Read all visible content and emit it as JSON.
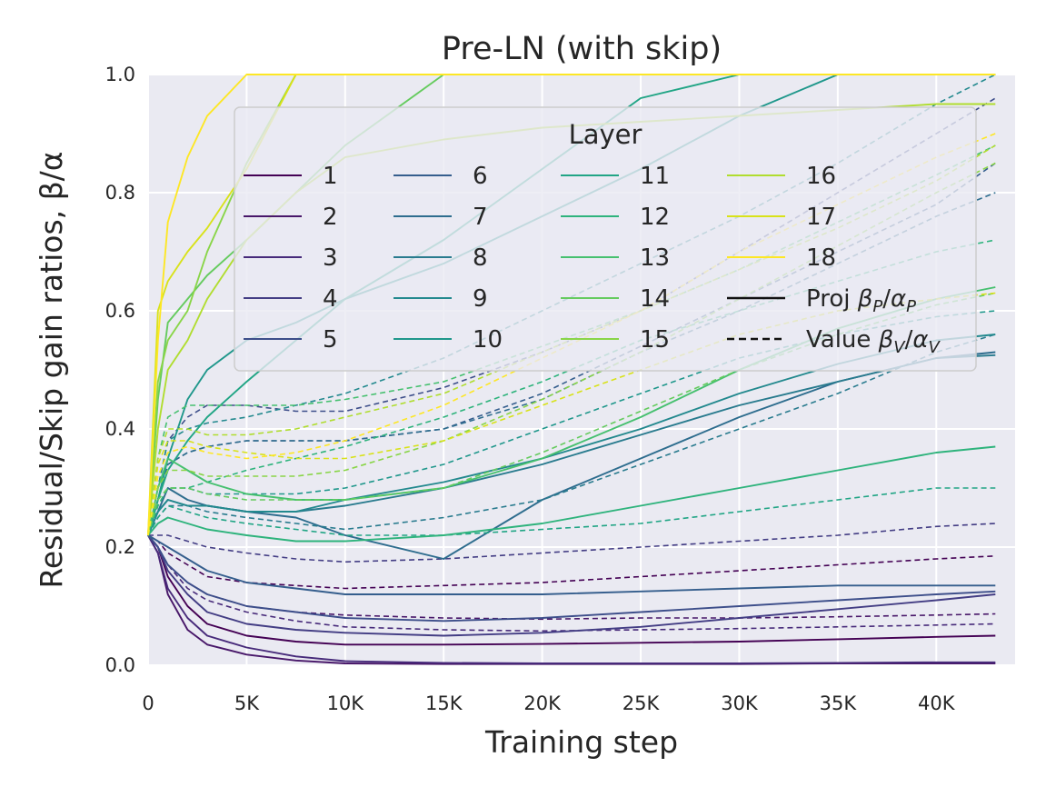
{
  "chart_data": {
    "type": "line",
    "title": "Pre-LN (with skip)",
    "xlabel": "Training step",
    "ylabel": "Residual/Skip gain ratios, β/α",
    "xlim": [
      0,
      44000
    ],
    "ylim": [
      0.0,
      1.0
    ],
    "x_ticks": [
      0,
      5000,
      10000,
      15000,
      20000,
      25000,
      30000,
      35000,
      40000
    ],
    "x_tick_labels": [
      "0",
      "5K",
      "10K",
      "15K",
      "20K",
      "25K",
      "30K",
      "35K",
      "40K"
    ],
    "y_ticks": [
      0.0,
      0.2,
      0.4,
      0.6,
      0.8,
      1.0
    ],
    "y_tick_labels": [
      "0.0",
      "0.2",
      "0.4",
      "0.6",
      "0.8",
      "1.0"
    ],
    "grid": true,
    "legend": {
      "title": "Layer",
      "placement": "upper-center",
      "layers": [
        "1",
        "2",
        "3",
        "4",
        "5",
        "6",
        "7",
        "8",
        "9",
        "10",
        "11",
        "12",
        "13",
        "14",
        "15",
        "16",
        "17",
        "18"
      ],
      "style_entries": [
        {
          "label_prefix": "Proj ",
          "math": "β_P/α_P",
          "base1": "β",
          "sub1": "P",
          "base2": "α",
          "sub2": "P",
          "style": "solid"
        },
        {
          "label_prefix": "Value ",
          "math": "β_V/α_V",
          "base1": "β",
          "sub1": "V",
          "base2": "α",
          "sub2": "V",
          "style": "dashed"
        }
      ]
    },
    "x": [
      0,
      500,
      1000,
      2000,
      3000,
      5000,
      7500,
      10000,
      15000,
      20000,
      25000,
      30000,
      35000,
      40000,
      43000
    ],
    "series": [
      {
        "name": "Layer 1 Proj",
        "layer": 1,
        "style": "solid",
        "color": "#440154",
        "values": [
          0.22,
          0.2,
          0.15,
          0.1,
          0.07,
          0.05,
          0.04,
          0.035,
          0.035,
          0.036,
          0.038,
          0.04,
          0.044,
          0.048,
          0.05
        ]
      },
      {
        "name": "Layer 1 Value",
        "layer": 1,
        "style": "dashed",
        "color": "#440154",
        "values": [
          0.22,
          0.21,
          0.19,
          0.17,
          0.15,
          0.14,
          0.135,
          0.13,
          0.135,
          0.14,
          0.15,
          0.16,
          0.17,
          0.18,
          0.185
        ]
      },
      {
        "name": "Layer 2 Proj",
        "layer": 2,
        "style": "solid",
        "color": "#481769",
        "values": [
          0.22,
          0.19,
          0.12,
          0.06,
          0.035,
          0.018,
          0.008,
          0.003,
          0.002,
          0.002,
          0.002,
          0.002,
          0.003,
          0.003,
          0.003
        ]
      },
      {
        "name": "Layer 2 Value",
        "layer": 2,
        "style": "dashed",
        "color": "#481769",
        "values": [
          0.22,
          0.2,
          0.17,
          0.14,
          0.12,
          0.1,
          0.09,
          0.085,
          0.08,
          0.078,
          0.08,
          0.08,
          0.082,
          0.085,
          0.087
        ]
      },
      {
        "name": "Layer 3 Proj",
        "layer": 3,
        "style": "solid",
        "color": "#472a7a",
        "values": [
          0.22,
          0.19,
          0.13,
          0.08,
          0.05,
          0.03,
          0.015,
          0.007,
          0.004,
          0.003,
          0.003,
          0.003,
          0.004,
          0.005,
          0.005
        ]
      },
      {
        "name": "Layer 3 Value",
        "layer": 3,
        "style": "dashed",
        "color": "#472a7a",
        "values": [
          0.22,
          0.2,
          0.17,
          0.13,
          0.11,
          0.09,
          0.075,
          0.065,
          0.06,
          0.058,
          0.06,
          0.062,
          0.065,
          0.068,
          0.07
        ]
      },
      {
        "name": "Layer 4 Proj",
        "layer": 4,
        "style": "solid",
        "color": "#433d84",
        "values": [
          0.22,
          0.2,
          0.16,
          0.12,
          0.09,
          0.07,
          0.06,
          0.055,
          0.05,
          0.055,
          0.065,
          0.08,
          0.095,
          0.11,
          0.12
        ]
      },
      {
        "name": "Layer 4 Value",
        "layer": 4,
        "style": "dashed",
        "color": "#433d84",
        "values": [
          0.22,
          0.22,
          0.22,
          0.21,
          0.2,
          0.19,
          0.18,
          0.175,
          0.18,
          0.19,
          0.2,
          0.21,
          0.22,
          0.235,
          0.24
        ]
      },
      {
        "name": "Layer 5 Proj",
        "layer": 5,
        "style": "solid",
        "color": "#3d4e8a",
        "values": [
          0.22,
          0.2,
          0.17,
          0.14,
          0.12,
          0.1,
          0.09,
          0.08,
          0.075,
          0.08,
          0.09,
          0.1,
          0.11,
          0.12,
          0.125
        ]
      },
      {
        "name": "Layer 5 Value",
        "layer": 5,
        "style": "dashed",
        "color": "#3d4e8a",
        "values": [
          0.22,
          0.3,
          0.38,
          0.42,
          0.44,
          0.44,
          0.43,
          0.43,
          0.47,
          0.53,
          0.6,
          0.7,
          0.8,
          0.9,
          0.96
        ]
      },
      {
        "name": "Layer 6 Proj",
        "layer": 6,
        "style": "solid",
        "color": "#355e8d",
        "values": [
          0.22,
          0.21,
          0.2,
          0.18,
          0.16,
          0.14,
          0.13,
          0.12,
          0.12,
          0.12,
          0.125,
          0.13,
          0.135,
          0.135,
          0.135
        ]
      },
      {
        "name": "Layer 6 Value",
        "layer": 6,
        "style": "dashed",
        "color": "#355e8d",
        "values": [
          0.22,
          0.3,
          0.34,
          0.36,
          0.37,
          0.38,
          0.38,
          0.38,
          0.4,
          0.46,
          0.54,
          0.62,
          0.7,
          0.78,
          0.85
        ]
      },
      {
        "name": "Layer 7 Proj",
        "layer": 7,
        "style": "solid",
        "color": "#2e6d8e",
        "values": [
          0.22,
          0.26,
          0.3,
          0.28,
          0.27,
          0.26,
          0.25,
          0.22,
          0.18,
          0.28,
          0.35,
          0.42,
          0.48,
          0.52,
          0.53
        ]
      },
      {
        "name": "Layer 7 Value",
        "layer": 7,
        "style": "dashed",
        "color": "#2e6d8e",
        "values": [
          0.22,
          0.28,
          0.34,
          0.36,
          0.37,
          0.38,
          0.38,
          0.38,
          0.4,
          0.45,
          0.53,
          0.6,
          0.68,
          0.76,
          0.8
        ]
      },
      {
        "name": "Layer 8 Proj",
        "layer": 8,
        "style": "solid",
        "color": "#297b8e",
        "values": [
          0.22,
          0.26,
          0.28,
          0.27,
          0.27,
          0.26,
          0.26,
          0.27,
          0.3,
          0.34,
          0.39,
          0.44,
          0.48,
          0.52,
          0.525
        ]
      },
      {
        "name": "Layer 8 Value",
        "layer": 8,
        "style": "dashed",
        "color": "#297b8e",
        "values": [
          0.22,
          0.25,
          0.27,
          0.27,
          0.26,
          0.25,
          0.24,
          0.23,
          0.25,
          0.28,
          0.34,
          0.4,
          0.46,
          0.53,
          0.56
        ]
      },
      {
        "name": "Layer 9 Proj",
        "layer": 9,
        "style": "solid",
        "color": "#23898e",
        "values": [
          0.22,
          0.26,
          0.28,
          0.27,
          0.27,
          0.26,
          0.26,
          0.28,
          0.31,
          0.35,
          0.4,
          0.46,
          0.51,
          0.55,
          0.56
        ]
      },
      {
        "name": "Layer 9 Value",
        "layer": 9,
        "style": "dashed",
        "color": "#23898e",
        "values": [
          0.22,
          0.3,
          0.38,
          0.4,
          0.41,
          0.42,
          0.44,
          0.46,
          0.52,
          0.6,
          0.68,
          0.76,
          0.85,
          0.95,
          1.0
        ]
      },
      {
        "name": "Layer 10 Proj",
        "layer": 10,
        "style": "solid",
        "color": "#1f978b",
        "values": [
          0.22,
          0.28,
          0.35,
          0.45,
          0.5,
          0.55,
          0.58,
          0.62,
          0.68,
          0.76,
          0.84,
          0.93,
          1.0,
          1.0,
          1.0
        ]
      },
      {
        "name": "Layer 10 Value",
        "layer": 10,
        "style": "dashed",
        "color": "#1f978b",
        "values": [
          0.22,
          0.27,
          0.3,
          0.3,
          0.29,
          0.29,
          0.29,
          0.3,
          0.34,
          0.4,
          0.46,
          0.52,
          0.56,
          0.59,
          0.6
        ]
      },
      {
        "name": "Layer 11 Proj",
        "layer": 11,
        "style": "solid",
        "color": "#21a585",
        "values": [
          0.22,
          0.28,
          0.33,
          0.38,
          0.42,
          0.48,
          0.55,
          0.62,
          0.72,
          0.84,
          0.96,
          1.0,
          1.0,
          1.0,
          1.0
        ]
      },
      {
        "name": "Layer 11 Value",
        "layer": 11,
        "style": "dashed",
        "color": "#21a585",
        "values": [
          0.22,
          0.25,
          0.27,
          0.26,
          0.25,
          0.24,
          0.23,
          0.22,
          0.22,
          0.23,
          0.24,
          0.26,
          0.28,
          0.3,
          0.3
        ]
      },
      {
        "name": "Layer 12 Proj",
        "layer": 12,
        "style": "solid",
        "color": "#2eb37c",
        "values": [
          0.22,
          0.24,
          0.25,
          0.24,
          0.23,
          0.22,
          0.21,
          0.21,
          0.22,
          0.24,
          0.27,
          0.3,
          0.33,
          0.36,
          0.37
        ]
      },
      {
        "name": "Layer 12 Value",
        "layer": 12,
        "style": "dashed",
        "color": "#2eb37c",
        "values": [
          0.22,
          0.27,
          0.3,
          0.3,
          0.31,
          0.33,
          0.35,
          0.37,
          0.42,
          0.48,
          0.55,
          0.6,
          0.65,
          0.7,
          0.72
        ]
      },
      {
        "name": "Layer 13 Proj",
        "layer": 13,
        "style": "solid",
        "color": "#46c06f",
        "values": [
          0.22,
          0.3,
          0.35,
          0.33,
          0.31,
          0.29,
          0.28,
          0.28,
          0.3,
          0.35,
          0.42,
          0.5,
          0.57,
          0.62,
          0.64
        ]
      },
      {
        "name": "Layer 13 Value",
        "layer": 13,
        "style": "dashed",
        "color": "#46c06f",
        "values": [
          0.22,
          0.35,
          0.42,
          0.44,
          0.44,
          0.44,
          0.44,
          0.45,
          0.48,
          0.54,
          0.6,
          0.67,
          0.75,
          0.83,
          0.88
        ]
      },
      {
        "name": "Layer 14 Proj",
        "layer": 14,
        "style": "solid",
        "color": "#65cb5e",
        "values": [
          0.22,
          0.45,
          0.58,
          0.62,
          0.66,
          0.72,
          0.8,
          0.88,
          1.0,
          1.0,
          1.0,
          1.0,
          1.0,
          1.0,
          1.0
        ]
      },
      {
        "name": "Layer 14 Value",
        "layer": 14,
        "style": "dashed",
        "color": "#65cb5e",
        "values": [
          0.22,
          0.28,
          0.3,
          0.3,
          0.29,
          0.28,
          0.28,
          0.28,
          0.3,
          0.36,
          0.43,
          0.5,
          0.56,
          0.61,
          0.63
        ]
      },
      {
        "name": "Layer 15 Proj",
        "layer": 15,
        "style": "solid",
        "color": "#89d548",
        "values": [
          0.22,
          0.48,
          0.55,
          0.6,
          0.7,
          0.85,
          1.0,
          1.0,
          1.0,
          1.0,
          1.0,
          1.0,
          1.0,
          1.0,
          1.0
        ]
      },
      {
        "name": "Layer 15 Value",
        "layer": 15,
        "style": "dashed",
        "color": "#89d548",
        "values": [
          0.22,
          0.3,
          0.33,
          0.33,
          0.32,
          0.32,
          0.32,
          0.33,
          0.38,
          0.45,
          0.53,
          0.62,
          0.71,
          0.8,
          0.85
        ]
      },
      {
        "name": "Layer 16 Proj",
        "layer": 16,
        "style": "solid",
        "color": "#b0dd2f",
        "values": [
          0.22,
          0.4,
          0.5,
          0.55,
          0.62,
          0.72,
          0.8,
          0.86,
          0.89,
          0.91,
          0.92,
          0.93,
          0.94,
          0.95,
          0.95
        ]
      },
      {
        "name": "Layer 16 Value",
        "layer": 16,
        "style": "dashed",
        "color": "#b0dd2f",
        "values": [
          0.22,
          0.35,
          0.4,
          0.4,
          0.39,
          0.39,
          0.4,
          0.42,
          0.46,
          0.53,
          0.6,
          0.67,
          0.74,
          0.82,
          0.88
        ]
      },
      {
        "name": "Layer 17 Proj",
        "layer": 17,
        "style": "solid",
        "color": "#d8e219",
        "values": [
          0.22,
          0.6,
          0.65,
          0.7,
          0.74,
          0.84,
          1.0,
          1.0,
          1.0,
          1.0,
          1.0,
          1.0,
          1.0,
          1.0,
          1.0
        ]
      },
      {
        "name": "Layer 17 Value",
        "layer": 17,
        "style": "dashed",
        "color": "#d8e219",
        "values": [
          0.22,
          0.34,
          0.38,
          0.38,
          0.37,
          0.36,
          0.35,
          0.35,
          0.38,
          0.44,
          0.5,
          0.56,
          0.6,
          0.62,
          0.63
        ]
      },
      {
        "name": "Layer 18 Proj",
        "layer": 18,
        "style": "solid",
        "color": "#fde725",
        "values": [
          0.22,
          0.55,
          0.75,
          0.86,
          0.93,
          1.0,
          1.0,
          1.0,
          1.0,
          1.0,
          1.0,
          1.0,
          1.0,
          1.0,
          1.0
        ]
      },
      {
        "name": "Layer 18 Value",
        "layer": 18,
        "style": "dashed",
        "color": "#fde725",
        "values": [
          0.22,
          0.32,
          0.36,
          0.37,
          0.36,
          0.35,
          0.36,
          0.38,
          0.44,
          0.52,
          0.6,
          0.7,
          0.78,
          0.86,
          0.9
        ]
      }
    ]
  }
}
